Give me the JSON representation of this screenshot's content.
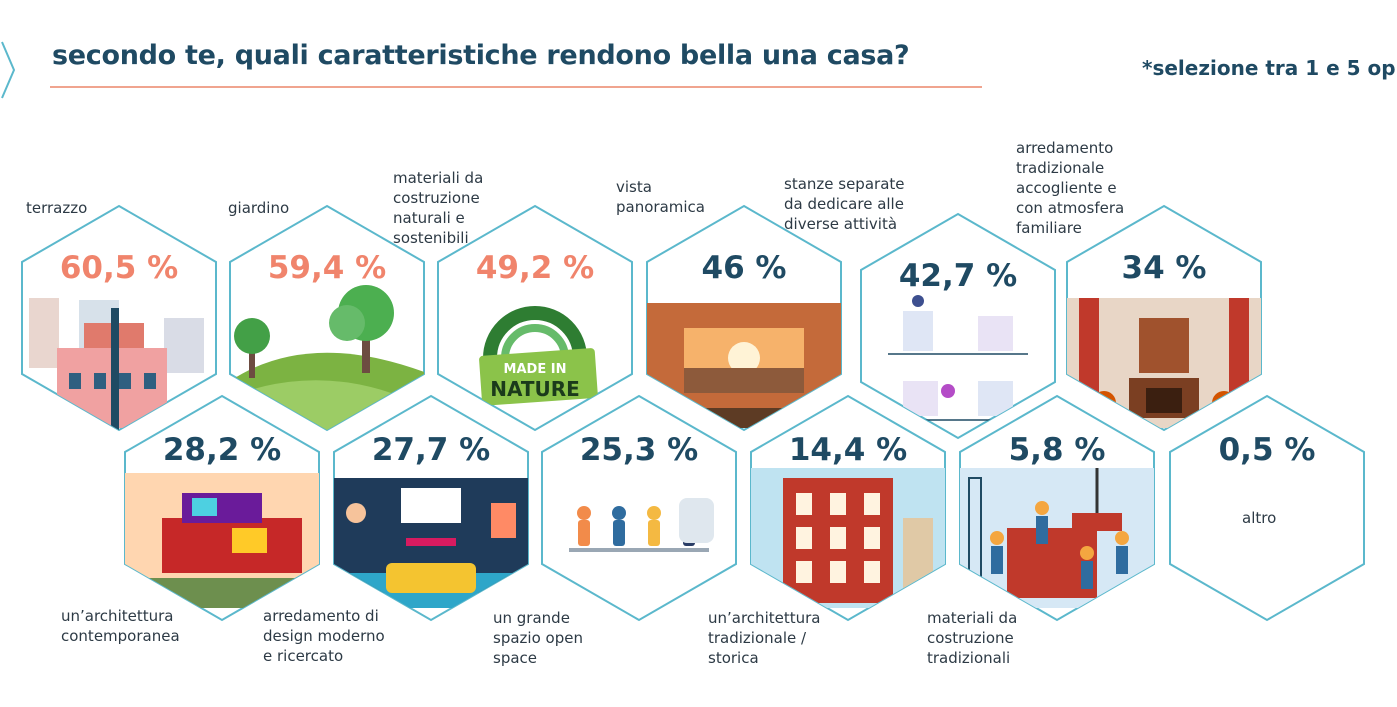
{
  "header": {
    "title": "secondo te, quali caratteristiche rendono bella una casa?",
    "note": "*selezione tra 1 e 5 op"
  },
  "colors": {
    "accent": "#f0846c",
    "primary": "#1f4a63",
    "hex_stroke": "#5bb8cc",
    "title_rule": "#f0a48f"
  },
  "chart_data": {
    "type": "hexagon-infographic",
    "title": "secondo te, quali caratteristiche rendono bella una casa?",
    "unit": "%",
    "items": [
      {
        "label": "terrazzo",
        "value": 60.5,
        "display": "60,5 %",
        "highlight": true,
        "illustration": "terrace-icon"
      },
      {
        "label": "giardino",
        "value": 59.4,
        "display": "59,4 %",
        "highlight": true,
        "illustration": "garden-icon"
      },
      {
        "label": "materiali da costruzione naturali e sostenibili",
        "value": 49.2,
        "display": "49,2 %",
        "highlight": true,
        "illustration": "made-in-nature-badge-icon",
        "badge": "MADE IN NATURE"
      },
      {
        "label": "vista panoramica",
        "value": 46,
        "display": "46 %",
        "highlight": false,
        "illustration": "panoramic-view-icon"
      },
      {
        "label": "stanze separate da dedicare alle diverse attività",
        "value": 42.7,
        "display": "42,7 %",
        "highlight": false,
        "illustration": "separate-rooms-icon"
      },
      {
        "label": "arredamento tradizionale accogliente e con atmosfera familiare",
        "value": 34,
        "display": "34 %",
        "highlight": false,
        "illustration": "traditional-interior-icon"
      },
      {
        "label": "un'architettura contemporanea",
        "value": 28.2,
        "display": "28,2 %",
        "highlight": false,
        "illustration": "modern-house-icon"
      },
      {
        "label": "arredamento di design moderno e ricercato",
        "value": 27.7,
        "display": "27,7 %",
        "highlight": false,
        "illustration": "modern-living-room-icon"
      },
      {
        "label": "un grande spazio open space",
        "value": 25.3,
        "display": "25,3 %",
        "highlight": false,
        "illustration": "open-space-icon"
      },
      {
        "label": "un'architettura tradizionale / storica",
        "value": 14.4,
        "display": "14,4 %",
        "highlight": false,
        "illustration": "historic-building-icon"
      },
      {
        "label": "materiali da costruzione tradizionali",
        "value": 5.8,
        "display": "5,8 %",
        "highlight": false,
        "illustration": "construction-workers-icon"
      },
      {
        "label": "altro",
        "value": 0.5,
        "display": "0,5 %",
        "highlight": false,
        "illustration": ""
      }
    ]
  }
}
